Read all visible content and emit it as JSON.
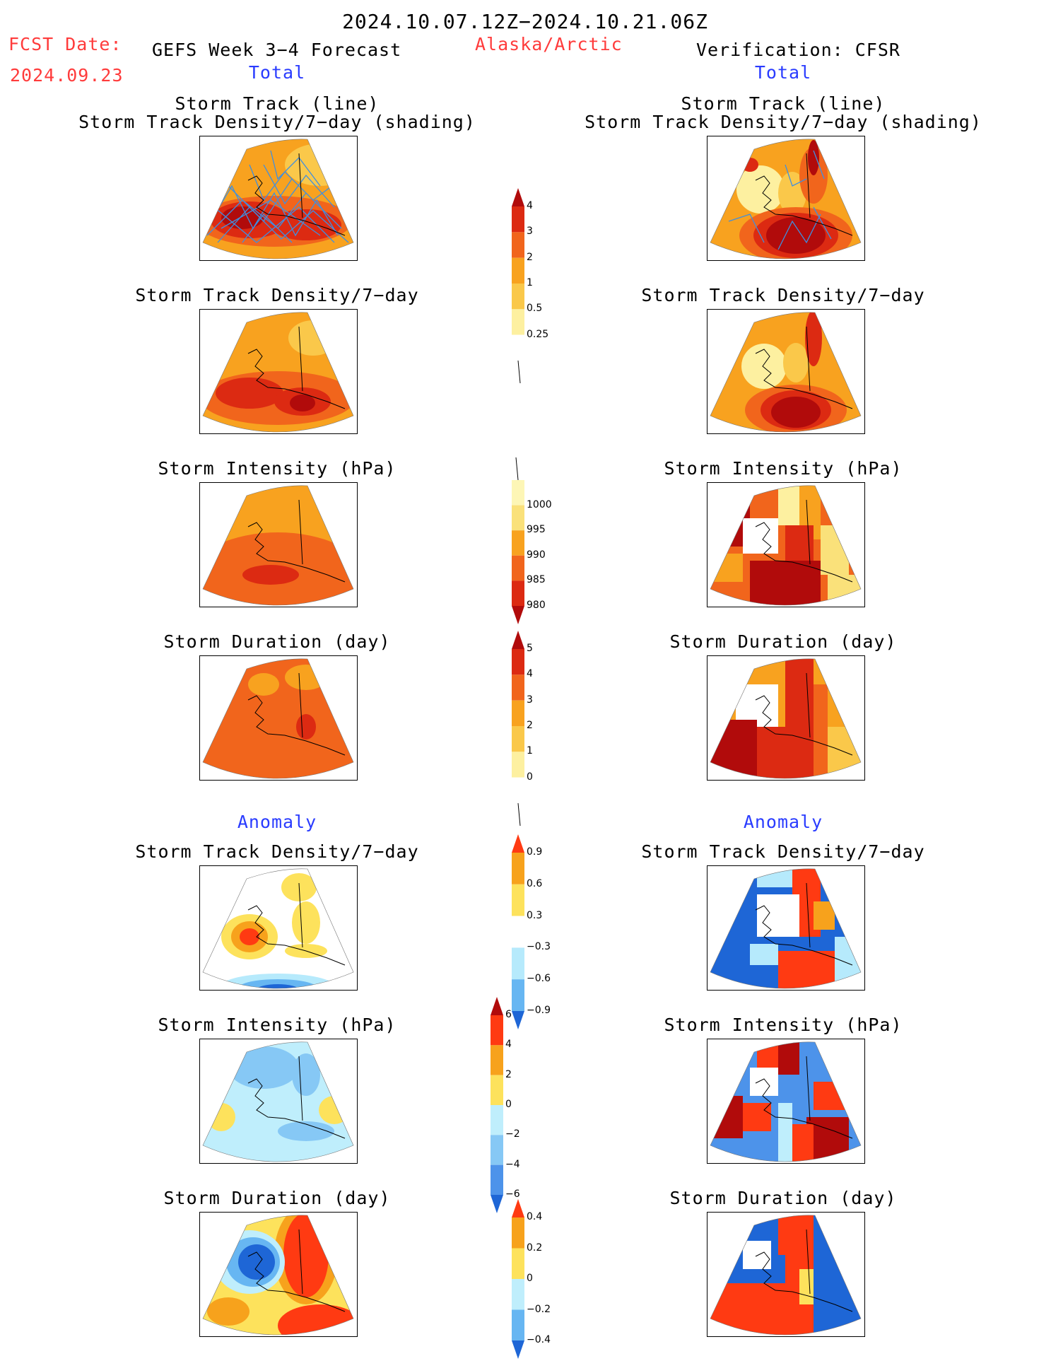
{
  "header": {
    "date_range": "2024.10.07.12Z−2024.10.21.06Z",
    "fcst_label": "FCST Date:",
    "fcst_date": "2024.09.23",
    "forecast_title": "GEFS Week 3−4 Forecast",
    "region": "Alaska/Arctic",
    "verification_title": "Verification: CFSR",
    "left_section": "Total",
    "right_section": "Total"
  },
  "anomaly_labels": {
    "left": "Anomaly",
    "right": "Anomaly"
  },
  "panel_titles": {
    "track_line": "Storm Track (line)",
    "track_shading": "Storm Track Density/7−day (shading)",
    "density": "Storm Track Density/7−day",
    "intensity": "Storm Intensity (hPa)",
    "duration": "Storm Duration (day)"
  },
  "colorbars": {
    "density": {
      "labels": [
        "4",
        "3",
        "2",
        "1",
        "0.5",
        "0.25"
      ],
      "colors": [
        "#b10b0b",
        "#dc2a12",
        "#f1651c",
        "#f8a21f",
        "#fac84a",
        "#fdf0a0",
        "#ffffff"
      ]
    },
    "intensity": {
      "labels": [
        "1000",
        "995",
        "990",
        "985",
        "980"
      ],
      "colors": [
        "#fdf6b6",
        "#fae17a",
        "#f8a21f",
        "#f1651c",
        "#dc2a12",
        "#b10b0b"
      ]
    },
    "duration": {
      "labels": [
        "5",
        "4",
        "3",
        "2",
        "1",
        "0"
      ],
      "colors": [
        "#b10b0b",
        "#dc2a12",
        "#f1651c",
        "#f8a21f",
        "#fac84a",
        "#fdf0a0",
        "#ffffff"
      ]
    },
    "density_anom": {
      "labels": [
        "0.9",
        "0.6",
        "0.3",
        "−0.3",
        "−0.6",
        "−0.9"
      ],
      "colors": [
        "#ff3a12",
        "#f7a21c",
        "#fde25c",
        "#ffffff",
        "#b6eafc",
        "#67b6f2",
        "#1e66d6"
      ]
    },
    "intensity_anom": {
      "labels": [
        "6",
        "4",
        "2",
        "0",
        "−2",
        "−4",
        "−6"
      ],
      "colors": [
        "#b10b0b",
        "#ff3a12",
        "#f7a21c",
        "#fde25c",
        "#bfeefc",
        "#86c8f5",
        "#4d93ea",
        "#1e66d6"
      ]
    },
    "duration_anom": {
      "labels": [
        "0.4",
        "0.2",
        "0",
        "−0.2",
        "−0.4"
      ],
      "colors": [
        "#ff3a12",
        "#f7a21c",
        "#fde25c",
        "#bfeefc",
        "#67b6f2",
        "#1e66d6"
      ]
    }
  }
}
